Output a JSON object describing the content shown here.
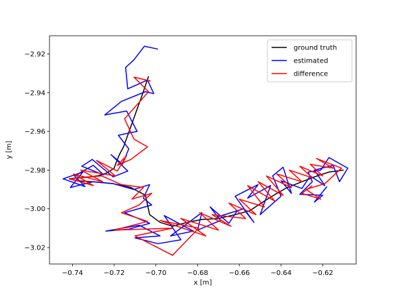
{
  "chart_data": {
    "type": "line",
    "title": "",
    "xlabel": "x [m]",
    "ylabel": "y [m]",
    "xlim": [
      -0.751,
      -0.604
    ],
    "ylim": [
      -3.0285,
      -2.9106
    ],
    "xticks": [
      -0.74,
      -0.72,
      -0.7,
      -0.68,
      -0.66,
      -0.64,
      -0.62
    ],
    "xtick_labels": [
      "−0.74",
      "−0.72",
      "−0.70",
      "−0.68",
      "−0.66",
      "−0.64",
      "−0.62"
    ],
    "yticks": [
      -2.92,
      -2.94,
      -2.96,
      -2.98,
      -3.0,
      -3.02
    ],
    "ytick_labels": [
      "−2.92",
      "−2.94",
      "−2.96",
      "−2.98",
      "−3.00",
      "−3.02"
    ],
    "grid": false,
    "legend_position": "top-right",
    "colors": {
      "ground_truth": "#000000",
      "estimated": "#0000ff",
      "difference": "#ff0000"
    },
    "series": [
      {
        "name": "ground truth",
        "x": [
          -0.7035,
          -0.7065,
          -0.7095,
          -0.7125,
          -0.7155,
          -0.7175,
          -0.719,
          -0.72,
          -0.7235,
          -0.728,
          -0.732,
          -0.738,
          -0.7415,
          -0.738,
          -0.73,
          -0.7205,
          -0.712,
          -0.705,
          -0.703,
          -0.698,
          -0.692,
          -0.685,
          -0.678,
          -0.67,
          -0.662,
          -0.655,
          -0.648,
          -0.642,
          -0.637,
          -0.63,
          -0.624,
          -0.617,
          -0.61
        ],
        "y": [
          -2.9315,
          -2.941,
          -2.95,
          -2.959,
          -2.968,
          -2.972,
          -2.976,
          -2.979,
          -2.9815,
          -2.983,
          -2.9835,
          -2.984,
          -2.9845,
          -2.9855,
          -2.986,
          -2.987,
          -2.989,
          -2.993,
          -3.003,
          -3.007,
          -3.009,
          -3.007,
          -3.0055,
          -3.005,
          -3.003,
          -3.001,
          -2.996,
          -2.992,
          -2.989,
          -2.986,
          -2.9835,
          -2.981,
          -2.98
        ]
      },
      {
        "name": "estimated",
        "x": [
          -0.699,
          -0.7055,
          -0.7105,
          -0.7145,
          -0.7135,
          -0.704,
          -0.701,
          -0.705,
          -0.7165,
          -0.7245,
          -0.714,
          -0.709,
          -0.718,
          -0.713,
          -0.716,
          -0.7215,
          -0.7135,
          -0.7205,
          -0.7305,
          -0.7355,
          -0.725,
          -0.73,
          -0.739,
          -0.734,
          -0.7445,
          -0.735,
          -0.741,
          -0.73,
          -0.7205,
          -0.7105,
          -0.703,
          -0.706,
          -0.702,
          -0.71,
          -0.715,
          -0.703,
          -0.713,
          -0.724,
          -0.708,
          -0.698,
          -0.71,
          -0.699,
          -0.688,
          -0.696,
          -0.682,
          -0.693,
          -0.678,
          -0.68,
          -0.669,
          -0.674,
          -0.665,
          -0.661,
          -0.67,
          -0.658,
          -0.653,
          -0.662,
          -0.651,
          -0.656,
          -0.645,
          -0.65,
          -0.64,
          -0.644,
          -0.639,
          -0.635,
          -0.64,
          -0.63,
          -0.626,
          -0.619,
          -0.624,
          -0.615,
          -0.612,
          -0.608,
          -0.617,
          -0.621,
          -0.627,
          -0.625,
          -0.631,
          -0.62,
          -0.624,
          -0.618
        ],
        "y": [
          -2.9175,
          -2.916,
          -2.923,
          -2.927,
          -2.938,
          -2.9335,
          -2.9405,
          -2.9395,
          -2.9445,
          -2.9515,
          -2.9495,
          -2.96,
          -2.962,
          -2.969,
          -2.977,
          -2.972,
          -2.9805,
          -2.9835,
          -2.9745,
          -2.978,
          -2.9825,
          -2.9775,
          -2.983,
          -2.9885,
          -2.9845,
          -2.981,
          -2.989,
          -2.986,
          -2.987,
          -2.99,
          -2.9875,
          -2.9945,
          -2.998,
          -3.0005,
          -3.002,
          -3.0075,
          -3.0105,
          -3.0115,
          -3.0085,
          -3.014,
          -3.015,
          -3.018,
          -3.016,
          -3.0035,
          -3.0115,
          -3.014,
          -3.002,
          -3.011,
          -3.006,
          -2.999,
          -3.0075,
          -3.001,
          -3.004,
          -3.0,
          -3.007,
          -2.9935,
          -2.9875,
          -2.9945,
          -2.988,
          -3.003,
          -2.9935,
          -2.983,
          -2.9785,
          -2.992,
          -2.9855,
          -2.9895,
          -2.983,
          -2.988,
          -2.98,
          -2.9775,
          -2.986,
          -2.979,
          -2.9735,
          -2.98,
          -2.981,
          -2.986,
          -2.9925,
          -2.993,
          -2.9965,
          -2.9885
        ]
      },
      {
        "name": "difference",
        "x": [
          -0.7025,
          -0.7105,
          -0.7035,
          -0.715,
          -0.7105,
          -0.704,
          -0.712,
          -0.7185,
          -0.714,
          -0.7185,
          -0.7285,
          -0.7195,
          -0.736,
          -0.7255,
          -0.7395,
          -0.73,
          -0.741,
          -0.726,
          -0.7165,
          -0.706,
          -0.7115,
          -0.702,
          -0.708,
          -0.7165,
          -0.704,
          -0.72,
          -0.692,
          -0.71,
          -0.692,
          -0.6795,
          -0.698,
          -0.676,
          -0.688,
          -0.67,
          -0.679,
          -0.664,
          -0.673,
          -0.657,
          -0.665,
          -0.652,
          -0.66,
          -0.648,
          -0.656,
          -0.643,
          -0.651,
          -0.639,
          -0.647,
          -0.635,
          -0.642,
          -0.63,
          -0.636,
          -0.625,
          -0.631,
          -0.62,
          -0.626,
          -0.615,
          -0.623,
          -0.611,
          -0.619,
          -0.628,
          -0.621,
          -0.63,
          -0.625
        ],
        "y": [
          -2.934,
          -2.932,
          -2.9395,
          -2.9535,
          -2.964,
          -2.968,
          -2.9745,
          -2.9775,
          -2.9725,
          -2.9805,
          -2.975,
          -2.983,
          -2.98,
          -2.986,
          -2.982,
          -2.988,
          -2.9845,
          -2.983,
          -2.9875,
          -2.989,
          -2.995,
          -2.992,
          -2.998,
          -3.002,
          -3.0065,
          -3.011,
          -3.01,
          -3.014,
          -3.024,
          -3.01,
          -3.006,
          -3.014,
          -3.005,
          -3.011,
          -3.002,
          -3.009,
          -3.003,
          -3.005,
          -2.997,
          -3.003,
          -2.995,
          -2.999,
          -2.988,
          -2.996,
          -2.986,
          -2.993,
          -2.983,
          -2.989,
          -2.982,
          -2.986,
          -2.98,
          -2.984,
          -2.978,
          -2.983,
          -2.977,
          -2.979,
          -2.974,
          -2.979,
          -2.987,
          -2.99,
          -2.995,
          -2.992,
          -2.988
        ]
      }
    ]
  }
}
